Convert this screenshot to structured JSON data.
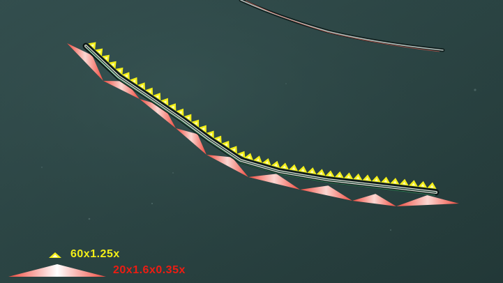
{
  "scene": "microscopy image of filaments with triangular scale annotations",
  "legend": {
    "yellow_label": "60x1.25x",
    "red_label": "20x1.6x0.35x"
  },
  "colors": {
    "background": "#2b4543",
    "yellow_marker": "#f4ef18",
    "red_marker": "#f04a3e",
    "filament": "#d7ddd2"
  },
  "counts": {
    "yellow_triangles": 42,
    "red_triangles": 9
  }
}
